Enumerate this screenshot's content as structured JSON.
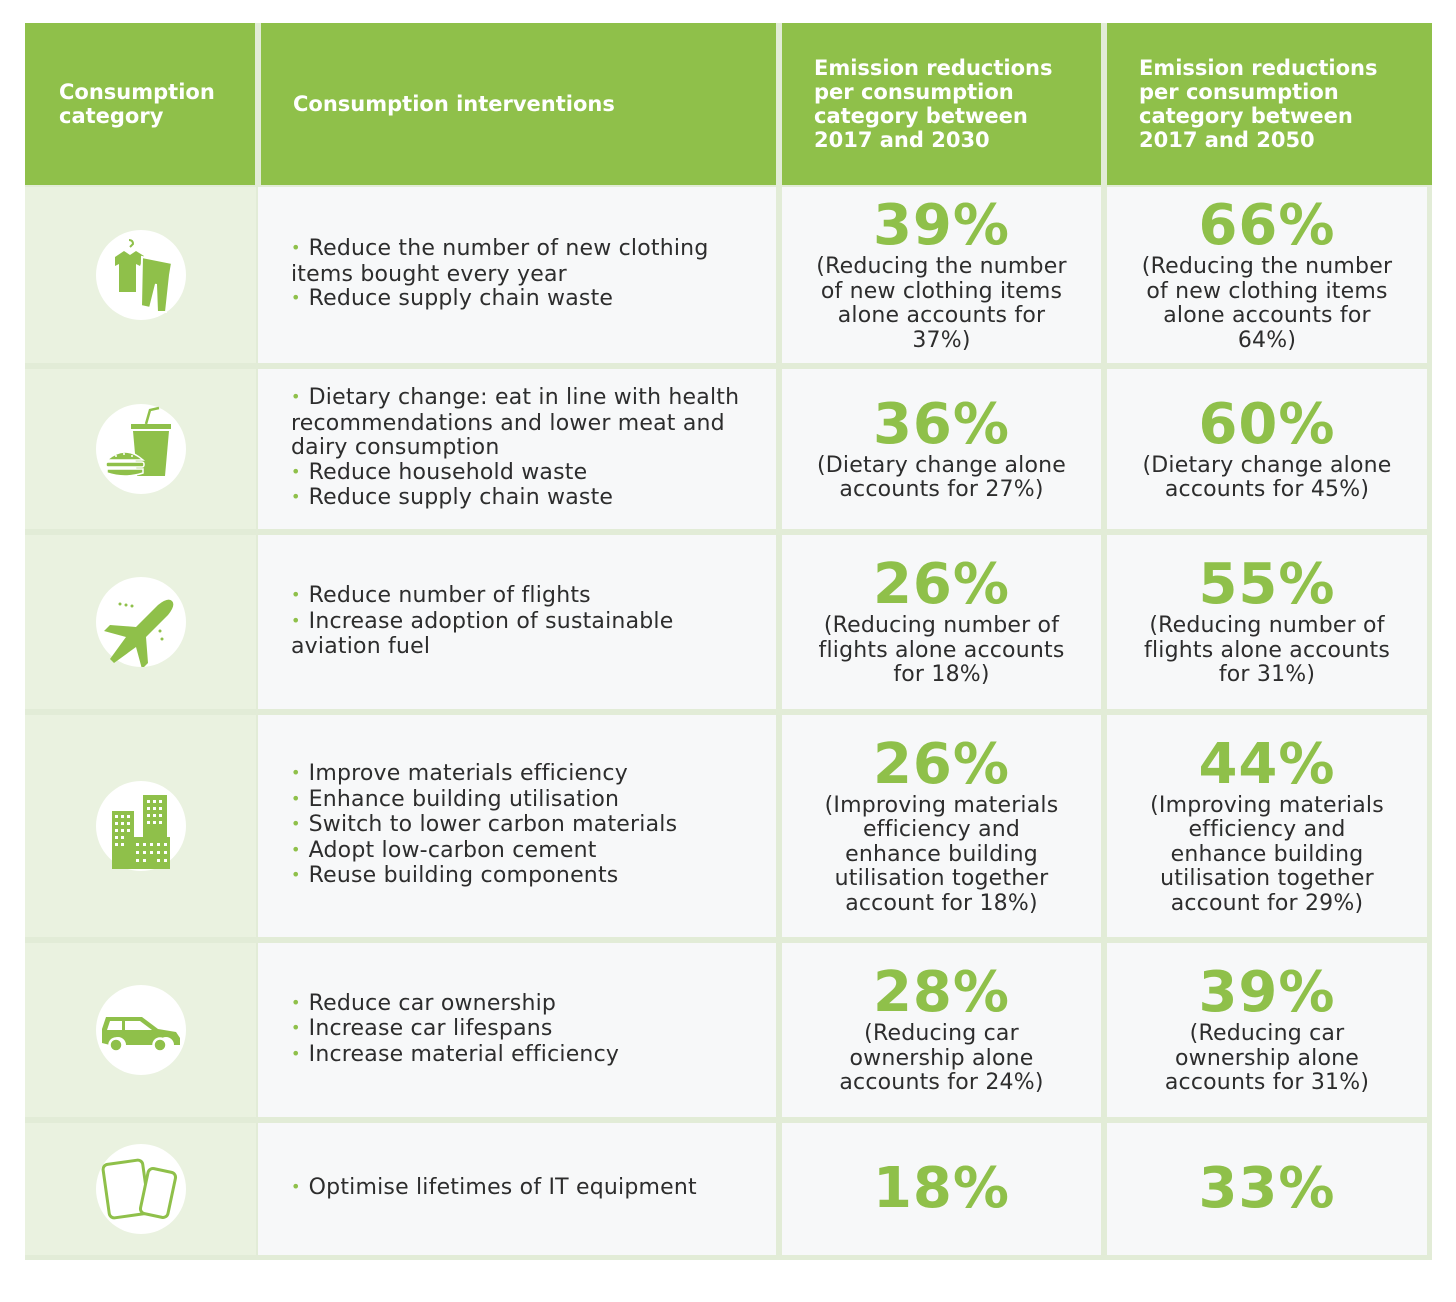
{
  "header": {
    "col1": "Consumption category",
    "col2": "Consumption interventions",
    "col3": "Emission reductions per consumption category between 2017 and 2030",
    "col4": "Emission reductions per consumption category between 2017 and 2050"
  },
  "colors": {
    "accent": "#8fc04a",
    "icon_bg": "#eaf2e0",
    "cell_bg": "#f7f8f9"
  },
  "rows": [
    {
      "icon": "clothing-icon",
      "interventions": [
        "Reduce the number of new clothing items bought every year",
        "Reduce supply chain waste"
      ],
      "pct_2030": "39%",
      "note_2030": "(Reducing the number of new clothing items alone accounts for 37%)",
      "pct_2050": "66%",
      "note_2050": "(Reducing the number of new clothing items alone accounts for 64%)"
    },
    {
      "icon": "food-icon",
      "interventions": [
        "Dietary change: eat in line with health recommendations and lower meat and dairy consumption",
        "Reduce household waste",
        "Reduce supply chain waste"
      ],
      "pct_2030": "36%",
      "note_2030": "(Dietary change alone accounts for 27%)",
      "pct_2050": "60%",
      "note_2050": "(Dietary change alone accounts for 45%)"
    },
    {
      "icon": "airplane-icon",
      "interventions": [
        "Reduce number of flights",
        "Increase adoption of sustainable aviation fuel"
      ],
      "pct_2030": "26%",
      "note_2030": "(Reducing number of flights alone accounts for 18%)",
      "pct_2050": "55%",
      "note_2050": "(Reducing number of flights alone accounts for 31%)"
    },
    {
      "icon": "buildings-icon",
      "interventions": [
        "Improve materials efficiency",
        "Enhance building utilisation",
        "Switch to lower carbon materials",
        "Adopt low-carbon cement",
        "Reuse building components"
      ],
      "pct_2030": "26%",
      "note_2030": "(Improving materials efficiency and enhance building utilisation together account for 18%)",
      "pct_2050": "44%",
      "note_2050": "(Improving materials efficiency and enhance building utilisation together account for 29%)"
    },
    {
      "icon": "car-icon",
      "interventions": [
        "Reduce car ownership",
        "Increase car lifespans",
        "Increase material efficiency"
      ],
      "pct_2030": "28%",
      "note_2030": "(Reducing car ownership alone accounts for 24%)",
      "pct_2050": "39%",
      "note_2050": "(Reducing car ownership alone accounts for 31%)"
    },
    {
      "icon": "devices-icon",
      "interventions": [
        "Optimise lifetimes of IT equipment"
      ],
      "pct_2030": "18%",
      "note_2030": "",
      "pct_2050": "33%",
      "note_2050": ""
    }
  ]
}
